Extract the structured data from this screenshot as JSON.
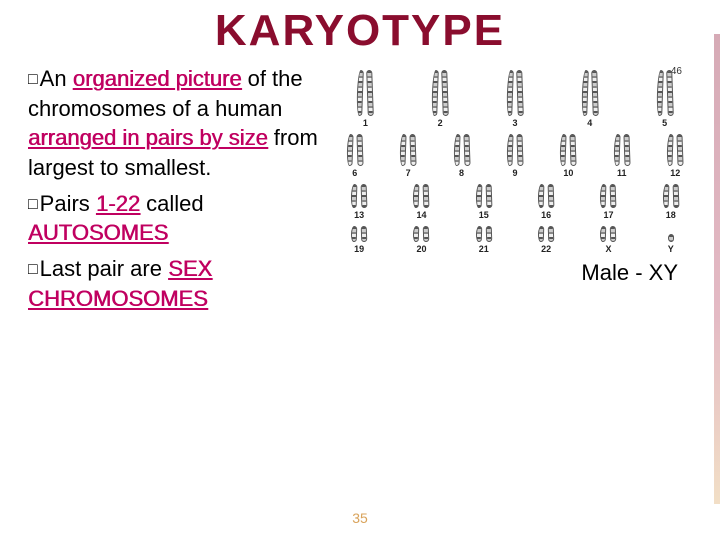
{
  "title": {
    "text": "KARYOTYPE",
    "color": "#8a0d2e"
  },
  "highlight_color": "#c00060",
  "bullets": [
    {
      "prefix": "An ",
      "parts": [
        {
          "t": "organized picture",
          "cls": "hl u"
        },
        {
          "t": " of the chromosomes of a human ",
          "cls": ""
        },
        {
          "t": "arranged in pairs by size",
          "cls": "hl u"
        },
        {
          "t": " from largest to smallest.",
          "cls": ""
        }
      ]
    },
    {
      "prefix": "Pairs ",
      "parts": [
        {
          "t": "1-22",
          "cls": "hl"
        },
        {
          "t": " called ",
          "cls": ""
        },
        {
          "t": "AUTOSOMES",
          "cls": "hl"
        }
      ]
    },
    {
      "prefix": "Last pair are ",
      "parts": [
        {
          "t": "SEX CHROMOSOMES",
          "cls": "hl u"
        }
      ]
    }
  ],
  "karyotype": {
    "count_label": "46",
    "rows": [
      {
        "size": "krow-tall",
        "pairs": [
          {
            "n": "1"
          },
          {
            "n": "2"
          },
          {
            "n": "3"
          },
          {
            "n": "4"
          },
          {
            "n": "5"
          }
        ]
      },
      {
        "size": "krow-med",
        "pairs": [
          {
            "n": "6"
          },
          {
            "n": "7"
          },
          {
            "n": "8"
          },
          {
            "n": "9"
          },
          {
            "n": "10"
          },
          {
            "n": "11"
          },
          {
            "n": "12"
          }
        ]
      },
      {
        "size": "krow-sm",
        "pairs": [
          {
            "n": "13"
          },
          {
            "n": "14"
          },
          {
            "n": "15"
          },
          {
            "n": "16"
          },
          {
            "n": "17"
          },
          {
            "n": "18"
          }
        ]
      },
      {
        "size": "krow-xs",
        "pairs": [
          {
            "n": "19"
          },
          {
            "n": "20"
          },
          {
            "n": "21"
          },
          {
            "n": "22"
          },
          {
            "n": "X"
          },
          {
            "n": "Y",
            "single": true
          }
        ]
      }
    ],
    "caption": "Male - XY"
  },
  "page_number": "35"
}
